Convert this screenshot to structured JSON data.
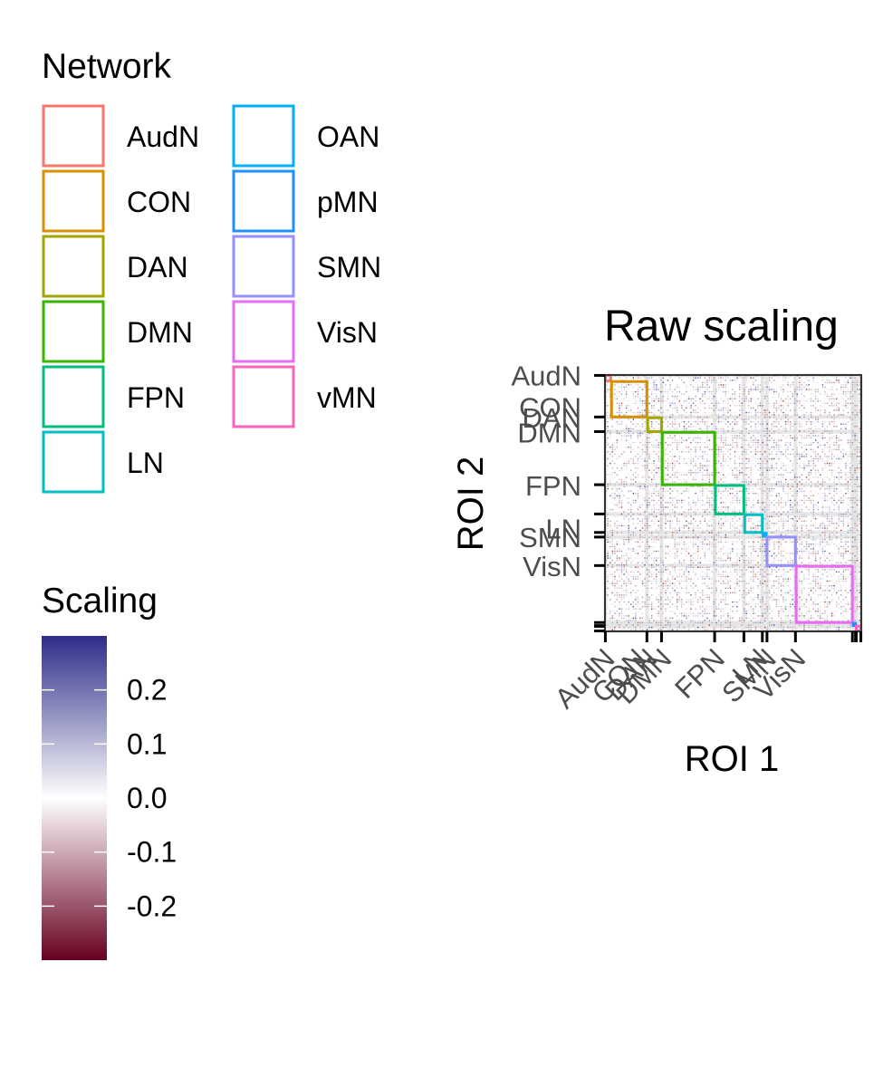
{
  "legends": {
    "network_title": "Network",
    "networks": [
      {
        "name": "AudN",
        "color": "#F8766D"
      },
      {
        "name": "CON",
        "color": "#D89000"
      },
      {
        "name": "DAN",
        "color": "#A3A500"
      },
      {
        "name": "DMN",
        "color": "#39B600"
      },
      {
        "name": "FPN",
        "color": "#00BF7D"
      },
      {
        "name": "LN",
        "color": "#00BFC4"
      },
      {
        "name": "OAN",
        "color": "#00B0F6"
      },
      {
        "name": "pMN",
        "color": "#1E90FF"
      },
      {
        "name": "SMN",
        "color": "#9590FF"
      },
      {
        "name": "VisN",
        "color": "#E76BF3"
      },
      {
        "name": "vMN",
        "color": "#FF62BC"
      }
    ],
    "scaling_title": "Scaling",
    "scaling_ticks": [
      {
        "label": "0.2",
        "value": 0.2
      },
      {
        "label": "0.1",
        "value": 0.1
      },
      {
        "label": "0.0",
        "value": 0.0
      },
      {
        "label": "-0.1",
        "value": -0.1
      },
      {
        "label": "-0.2",
        "value": -0.2
      }
    ],
    "scaling_range": [
      -0.3,
      0.3
    ],
    "scaling_colors": {
      "low": "#67001F",
      "mid": "#FFFFFF",
      "high": "#2D2D8A"
    }
  },
  "chart_data": {
    "type": "heatmap",
    "title": "Raw scaling",
    "xlabel": "ROI 1",
    "ylabel": "ROI 2",
    "roi_count": 333,
    "networks": [
      {
        "name": "AudN",
        "start": 1,
        "end": 8,
        "color": "#F8766D"
      },
      {
        "name": "CON",
        "start": 9,
        "end": 55,
        "color": "#D89000"
      },
      {
        "name": "DAN",
        "start": 56,
        "end": 74,
        "color": "#A3A500"
      },
      {
        "name": "DMN",
        "start": 75,
        "end": 143,
        "color": "#39B600"
      },
      {
        "name": "FPN",
        "start": 144,
        "end": 181,
        "color": "#00BF7D"
      },
      {
        "name": "LN",
        "start": 182,
        "end": 205,
        "color": "#00BFC4"
      },
      {
        "name": "OAN",
        "start": 206,
        "end": 210,
        "color": "#00B0F6"
      },
      {
        "name": "SMN",
        "start": 211,
        "end": 248,
        "color": "#9590FF"
      },
      {
        "name": "VisN",
        "start": 249,
        "end": 322,
        "color": "#E76BF3"
      },
      {
        "name": "pMN",
        "start": 323,
        "end": 326,
        "color": "#1E90FF"
      },
      {
        "name": "vMN",
        "start": 327,
        "end": 333,
        "color": "#FF62BC"
      }
    ],
    "tick_labels": [
      "AudN",
      "CON",
      "DAN",
      "DMN",
      "FPN",
      "LN",
      "SMN",
      "VisN"
    ],
    "tick_positions": [
      1,
      55,
      74,
      143,
      181,
      205,
      211,
      248,
      322,
      326,
      327,
      333
    ],
    "value_range": [
      -0.3,
      0.3
    ],
    "grid": true
  }
}
